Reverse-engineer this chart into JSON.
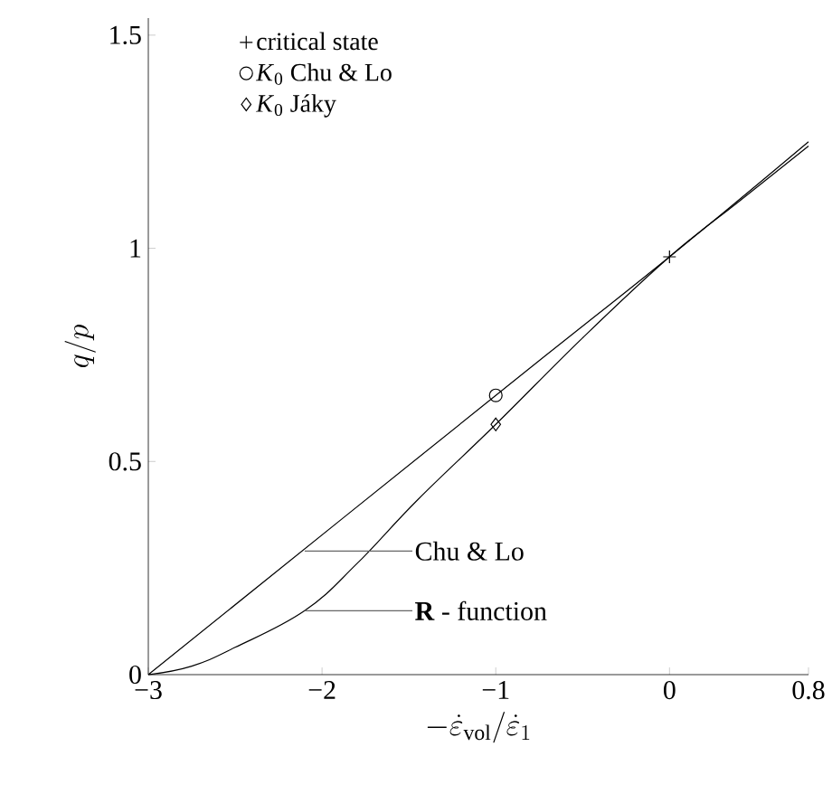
{
  "chart_data": {
    "type": "line",
    "xlabel": "-\\dot{\\varepsilon}_\\mathrm{vol}/\\dot{\\varepsilon}_1",
    "ylabel": "q/p",
    "xlim": [
      -3,
      0.8
    ],
    "ylim": [
      0,
      1.54
    ],
    "xticks": [
      {
        "value": -3,
        "label": "−3"
      },
      {
        "value": -2,
        "label": "−2"
      },
      {
        "value": -1,
        "label": "−1"
      },
      0,
      0.8
    ],
    "yticks": [
      0,
      0.5,
      1,
      1.5
    ],
    "series": [
      {
        "color": "#000000",
        "x": [
          -3,
          -1,
          0,
          0.8
        ],
        "values": [
          0,
          0.655,
          0.98,
          1.25
        ]
      },
      {
        "color": "#000000",
        "x": [
          -3,
          -2.75,
          -2.5,
          -2.1,
          -1.8,
          -1.45,
          -1,
          -0.5,
          0,
          0.4,
          0.8
        ],
        "values": [
          0,
          0.02,
          0.064,
          0.15,
          0.26,
          0.41,
          0.587,
          0.79,
          0.98,
          1.11,
          1.24
        ]
      },
      {
        "type": "scatter",
        "name": "critical state",
        "marker": "cross",
        "color": "#000000",
        "x": [
          0
        ],
        "values": [
          0.98
        ]
      },
      {
        "type": "scatter",
        "name": "*K*$_{0}$ Chu & Lo",
        "marker": "circle",
        "color": "#000000",
        "x": [
          -1
        ],
        "values": [
          0.655
        ]
      },
      {
        "type": "scatter",
        "name": "*K*$_{0}$ Jáky",
        "marker": "diamond",
        "color": "#000000",
        "x": [
          -1
        ],
        "values": [
          0.587
        ]
      }
    ],
    "annotations": [
      {
        "text": "Chu & Lo",
        "x": -2.1,
        "y": 0.29
      },
      {
        "text": "**R** - function",
        "x": -2.1,
        "y": 0.15
      }
    ],
    "legend": "top left"
  }
}
